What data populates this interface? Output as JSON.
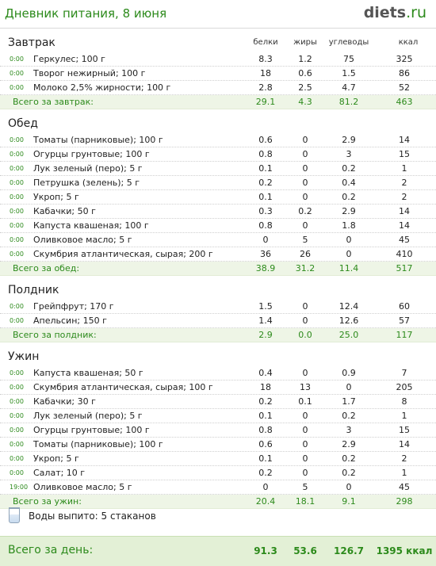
{
  "title": "Дневник питания, 8 июня",
  "logo": {
    "main": "diets",
    "suffix": ".ru"
  },
  "columns": [
    "белки",
    "жиры",
    "углеводы",
    "ккал"
  ],
  "meals": [
    {
      "name": "Завтрак",
      "items": [
        {
          "time": "0:00",
          "name": "Геркулес; 100 г",
          "protein": "8.3",
          "fat": "1.2",
          "carbs": "75",
          "kcal": "325"
        },
        {
          "time": "0:00",
          "name": "Творог нежирный; 100 г",
          "protein": "18",
          "fat": "0.6",
          "carbs": "1.5",
          "kcal": "86"
        },
        {
          "time": "0:00",
          "name": "Молоко 2,5% жирности; 100 г",
          "protein": "2.8",
          "fat": "2.5",
          "carbs": "4.7",
          "kcal": "52"
        }
      ],
      "total": {
        "label": "Всего за завтрак:",
        "protein": "29.1",
        "fat": "4.3",
        "carbs": "81.2",
        "kcal": "463"
      }
    },
    {
      "name": "Обед",
      "items": [
        {
          "time": "0:00",
          "name": "Томаты (парниковые); 100 г",
          "protein": "0.6",
          "fat": "0",
          "carbs": "2.9",
          "kcal": "14"
        },
        {
          "time": "0:00",
          "name": "Огурцы грунтовые; 100 г",
          "protein": "0.8",
          "fat": "0",
          "carbs": "3",
          "kcal": "15"
        },
        {
          "time": "0:00",
          "name": "Лук зеленый (перо); 5 г",
          "protein": "0.1",
          "fat": "0",
          "carbs": "0.2",
          "kcal": "1"
        },
        {
          "time": "0:00",
          "name": "Петрушка (зелень); 5 г",
          "protein": "0.2",
          "fat": "0",
          "carbs": "0.4",
          "kcal": "2"
        },
        {
          "time": "0:00",
          "name": "Укроп; 5 г",
          "protein": "0.1",
          "fat": "0",
          "carbs": "0.2",
          "kcal": "2"
        },
        {
          "time": "0:00",
          "name": "Кабачки; 50 г",
          "protein": "0.3",
          "fat": "0.2",
          "carbs": "2.9",
          "kcal": "14"
        },
        {
          "time": "0:00",
          "name": "Капуста квашеная; 100 г",
          "protein": "0.8",
          "fat": "0",
          "carbs": "1.8",
          "kcal": "14"
        },
        {
          "time": "0:00",
          "name": "Оливковое масло; 5 г",
          "protein": "0",
          "fat": "5",
          "carbs": "0",
          "kcal": "45"
        },
        {
          "time": "0:00",
          "name": "Скумбрия атлантическая, сырая; 200 г",
          "protein": "36",
          "fat": "26",
          "carbs": "0",
          "kcal": "410"
        }
      ],
      "total": {
        "label": "Всего за обед:",
        "protein": "38.9",
        "fat": "31.2",
        "carbs": "11.4",
        "kcal": "517"
      }
    },
    {
      "name": "Полдник",
      "items": [
        {
          "time": "0:00",
          "name": "Грейпфрут; 170 г",
          "protein": "1.5",
          "fat": "0",
          "carbs": "12.4",
          "kcal": "60"
        },
        {
          "time": "0:00",
          "name": "Апельсин; 150 г",
          "protein": "1.4",
          "fat": "0",
          "carbs": "12.6",
          "kcal": "57"
        }
      ],
      "total": {
        "label": "Всего за полдник:",
        "protein": "2.9",
        "fat": "0.0",
        "carbs": "25.0",
        "kcal": "117"
      }
    },
    {
      "name": "Ужин",
      "items": [
        {
          "time": "0:00",
          "name": "Капуста квашеная; 50 г",
          "protein": "0.4",
          "fat": "0",
          "carbs": "0.9",
          "kcal": "7"
        },
        {
          "time": "0:00",
          "name": "Скумбрия атлантическая, сырая; 100 г",
          "protein": "18",
          "fat": "13",
          "carbs": "0",
          "kcal": "205"
        },
        {
          "time": "0:00",
          "name": "Кабачки; 30 г",
          "protein": "0.2",
          "fat": "0.1",
          "carbs": "1.7",
          "kcal": "8"
        },
        {
          "time": "0:00",
          "name": "Лук зеленый (перо); 5 г",
          "protein": "0.1",
          "fat": "0",
          "carbs": "0.2",
          "kcal": "1"
        },
        {
          "time": "0:00",
          "name": "Огурцы грунтовые; 100 г",
          "protein": "0.8",
          "fat": "0",
          "carbs": "3",
          "kcal": "15"
        },
        {
          "time": "0:00",
          "name": "Томаты (парниковые); 100 г",
          "protein": "0.6",
          "fat": "0",
          "carbs": "2.9",
          "kcal": "14"
        },
        {
          "time": "0:00",
          "name": "Укроп; 5 г",
          "protein": "0.1",
          "fat": "0",
          "carbs": "0.2",
          "kcal": "2"
        },
        {
          "time": "0:00",
          "name": "Салат; 10 г",
          "protein": "0.2",
          "fat": "0",
          "carbs": "0.2",
          "kcal": "1"
        },
        {
          "time": "19:00",
          "name": "Оливковое масло; 5 г",
          "protein": "0",
          "fat": "5",
          "carbs": "0",
          "kcal": "45"
        }
      ],
      "total": {
        "label": "Всего за ужин:",
        "protein": "20.4",
        "fat": "18.1",
        "carbs": "9.1",
        "kcal": "298"
      }
    }
  ],
  "water": {
    "text": "Воды выпито: 5 стаканов",
    "icon": "water-glass-icon"
  },
  "day_total": {
    "label": "Всего за день:",
    "protein": "91.3",
    "fat": "53.6",
    "carbs": "126.7",
    "kcal": "1395 ккал"
  },
  "colors": {
    "accent": "#2c8a1b",
    "total_bg": "#eef5e6",
    "day_total_bg": "#e3f0d6"
  }
}
